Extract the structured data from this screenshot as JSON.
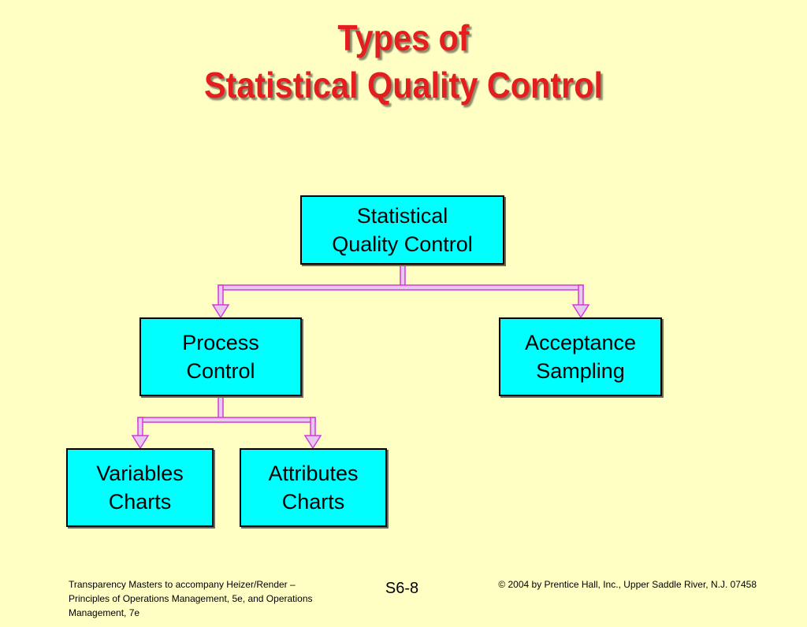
{
  "title": {
    "line1": "Types of",
    "line2": "Statistical Quality Control"
  },
  "nodes": {
    "root": {
      "line1": "Statistical",
      "line2": "Quality Control"
    },
    "process_control": {
      "line1": "Process",
      "line2": "Control"
    },
    "acceptance_sampling": {
      "line1": "Acceptance",
      "line2": "Sampling"
    },
    "variables_charts": {
      "line1": "Variables",
      "line2": "Charts"
    },
    "attributes_charts": {
      "line1": "Attributes",
      "line2": "Charts"
    }
  },
  "footer": {
    "left_line1": "Transparency Masters to accompany Heizer/Render –",
    "left_line2": "Principles of Operations Management, 5e, and Operations",
    "left_line3": "Management, 7e",
    "slide_number": "S6-8",
    "copyright": "© 2004 by Prentice Hall, Inc.,  Upper Saddle River, N.J. 07458"
  },
  "colors": {
    "background": "#FFFFC4",
    "title": "#E41E1E",
    "box_fill": "#00FFFF",
    "connector_stroke": "#D63AD6",
    "connector_fill": "#E7C8F0"
  }
}
